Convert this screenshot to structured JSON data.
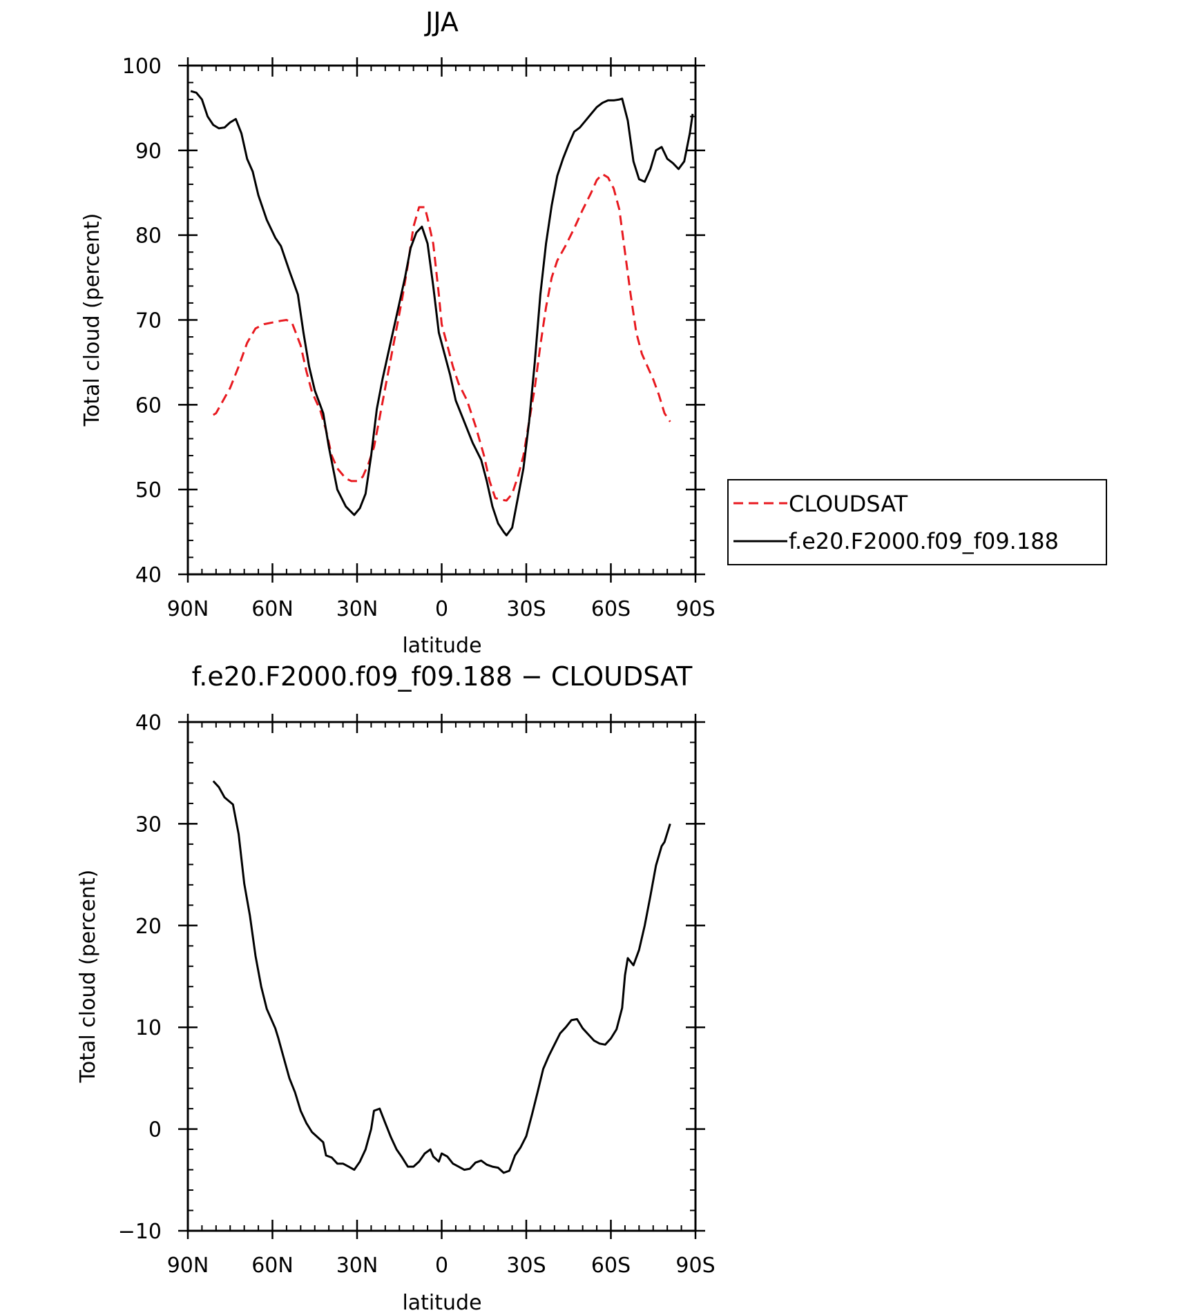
{
  "chart_data": [
    {
      "type": "line",
      "title": "JJA",
      "xlabel": "latitude",
      "ylabel": "Total cloud (percent)",
      "xlim": [
        90,
        -90
      ],
      "ylim": [
        40,
        100
      ],
      "x_ticks": [
        90,
        60,
        30,
        0,
        -30,
        -60,
        -90
      ],
      "x_tick_labels": [
        "90N",
        "60N",
        "30N",
        "0",
        "30S",
        "60S",
        "90S"
      ],
      "y_ticks": [
        40,
        50,
        60,
        70,
        80,
        90,
        100
      ],
      "y_tick_labels": [
        "40",
        "50",
        "60",
        "70",
        "80",
        "90",
        "100"
      ],
      "legend_position": "right",
      "series": [
        {
          "name": "CLOUDSAT",
          "color": "#e8191f",
          "dash": "dashed",
          "points": [
            [
              81,
              58.8
            ],
            [
              80,
              59
            ],
            [
              78,
              60.2
            ],
            [
              75,
              62
            ],
            [
              72,
              64.5
            ],
            [
              69,
              67.3
            ],
            [
              66,
              69
            ],
            [
              63,
              69.5
            ],
            [
              60,
              69.7
            ],
            [
              57,
              69.9
            ],
            [
              55,
              70
            ],
            [
              53,
              69.6
            ],
            [
              50,
              67
            ],
            [
              48,
              64
            ],
            [
              46,
              61.5
            ],
            [
              43,
              59.3
            ],
            [
              41,
              57
            ],
            [
              39,
              54
            ],
            [
              37,
              52.5
            ],
            [
              34,
              51.3
            ],
            [
              32,
              51
            ],
            [
              30,
              51
            ],
            [
              28,
              51.5
            ],
            [
              26,
              53
            ],
            [
              24,
              55
            ],
            [
              22,
              58.5
            ],
            [
              20,
              62
            ],
            [
              18,
              65.5
            ],
            [
              16,
              69
            ],
            [
              14,
              72.5
            ],
            [
              12,
              76.5
            ],
            [
              10,
              81
            ],
            [
              8,
              83.3
            ],
            [
              6,
              83.3
            ],
            [
              5,
              82
            ],
            [
              3,
              79
            ],
            [
              1,
              73
            ],
            [
              0,
              69.5
            ],
            [
              -2,
              67
            ],
            [
              -4,
              64.5
            ],
            [
              -6,
              62.5
            ],
            [
              -9,
              60.5
            ],
            [
              -12,
              57.5
            ],
            [
              -15,
              54
            ],
            [
              -17,
              51
            ],
            [
              -19,
              49
            ],
            [
              -21,
              48.8
            ],
            [
              -23,
              48.7
            ],
            [
              -25,
              49.5
            ],
            [
              -27,
              51.5
            ],
            [
              -29,
              54
            ],
            [
              -31,
              58
            ],
            [
              -33,
              62
            ],
            [
              -35,
              67
            ],
            [
              -37,
              71.5
            ],
            [
              -39,
              75
            ],
            [
              -41,
              77
            ],
            [
              -44,
              78.8
            ],
            [
              -47,
              80.8
            ],
            [
              -50,
              83
            ],
            [
              -53,
              85
            ],
            [
              -55,
              86.5
            ],
            [
              -57,
              87.2
            ],
            [
              -59,
              86.8
            ],
            [
              -61,
              85.5
            ],
            [
              -63,
              83
            ],
            [
              -65,
              78
            ],
            [
              -67,
              73
            ],
            [
              -69,
              68.5
            ],
            [
              -71,
              66
            ],
            [
              -73,
              64.5
            ],
            [
              -75,
              63
            ],
            [
              -77,
              61.2
            ],
            [
              -79,
              59
            ],
            [
              -81,
              58
            ]
          ]
        },
        {
          "name": "f.e20.F2000.f09_f09.188",
          "color": "#000000",
          "dash": "solid",
          "points": [
            [
              89,
              97
            ],
            [
              87,
              96.8
            ],
            [
              85,
              96
            ],
            [
              83,
              94
            ],
            [
              81,
              93
            ],
            [
              79,
              92.6
            ],
            [
              77,
              92.7
            ],
            [
              75,
              93.3
            ],
            [
              73,
              93.7
            ],
            [
              71,
              92
            ],
            [
              69,
              89
            ],
            [
              67,
              87.5
            ],
            [
              65,
              84.7
            ],
            [
              62,
              81.8
            ],
            [
              59,
              79.7
            ],
            [
              57,
              78.7
            ],
            [
              54,
              75.8
            ],
            [
              51,
              73
            ],
            [
              49,
              68.5
            ],
            [
              47,
              64.5
            ],
            [
              45,
              61.7
            ],
            [
              42,
              59
            ],
            [
              40,
              55
            ],
            [
              37,
              50
            ],
            [
              34,
              48
            ],
            [
              31,
              47
            ],
            [
              29,
              47.8
            ],
            [
              27,
              49.5
            ],
            [
              25,
              54
            ],
            [
              23,
              59.5
            ],
            [
              21,
              63
            ],
            [
              19,
              66
            ],
            [
              17,
              69
            ],
            [
              15,
              72
            ],
            [
              13,
              75
            ],
            [
              11,
              78.5
            ],
            [
              9,
              80.3
            ],
            [
              7,
              81
            ],
            [
              5,
              79
            ],
            [
              3,
              74
            ],
            [
              1,
              68.5
            ],
            [
              -1,
              66
            ],
            [
              -3,
              63.5
            ],
            [
              -5,
              60.5
            ],
            [
              -8,
              58
            ],
            [
              -11,
              55.5
            ],
            [
              -14,
              53.5
            ],
            [
              -16,
              51
            ],
            [
              -18,
              48
            ],
            [
              -20,
              46
            ],
            [
              -22,
              45
            ],
            [
              -23,
              44.6
            ],
            [
              -25,
              45.5
            ],
            [
              -27,
              49
            ],
            [
              -29,
              52.5
            ],
            [
              -31,
              58
            ],
            [
              -33,
              65
            ],
            [
              -35,
              73
            ],
            [
              -37,
              79
            ],
            [
              -39,
              83.5
            ],
            [
              -41,
              87
            ],
            [
              -43,
              89
            ],
            [
              -45,
              90.7
            ],
            [
              -47,
              92.2
            ],
            [
              -49,
              92.7
            ],
            [
              -51,
              93.5
            ],
            [
              -53,
              94.3
            ],
            [
              -55,
              95.1
            ],
            [
              -57,
              95.6
            ],
            [
              -59,
              95.9
            ],
            [
              -61,
              95.9
            ],
            [
              -63,
              96
            ],
            [
              -64,
              96.1
            ],
            [
              -66,
              93.5
            ],
            [
              -68,
              88.7
            ],
            [
              -70,
              86.6
            ],
            [
              -72,
              86.3
            ],
            [
              -74,
              87.8
            ],
            [
              -76,
              90
            ],
            [
              -78,
              90.4
            ],
            [
              -80,
              89
            ],
            [
              -82,
              88.5
            ],
            [
              -84,
              87.8
            ],
            [
              -86,
              88.7
            ],
            [
              -88,
              92
            ],
            [
              -89,
              94.3
            ]
          ]
        }
      ]
    },
    {
      "type": "line",
      "title": "f.e20.F2000.f09_f09.188 − CLOUDSAT",
      "xlabel": "latitude",
      "ylabel": "Total cloud (percent)",
      "xlim": [
        90,
        -90
      ],
      "ylim": [
        -10,
        40
      ],
      "x_ticks": [
        90,
        60,
        30,
        0,
        -30,
        -60,
        -90
      ],
      "x_tick_labels": [
        "90N",
        "60N",
        "30N",
        "0",
        "30S",
        "60S",
        "90S"
      ],
      "y_ticks": [
        -10,
        0,
        10,
        20,
        30,
        40
      ],
      "y_tick_labels": [
        "−10",
        "0",
        "10",
        "20",
        "30",
        "40"
      ],
      "series": [
        {
          "color": "#000000",
          "dash": "solid",
          "points": [
            [
              81,
              34.2
            ],
            [
              79,
              33.6
            ],
            [
              77,
              32.6
            ],
            [
              74,
              31.9
            ],
            [
              72,
              29
            ],
            [
              70,
              24.1
            ],
            [
              68,
              21
            ],
            [
              66,
              17
            ],
            [
              64,
              14
            ],
            [
              62,
              11.8
            ],
            [
              59,
              9.9
            ],
            [
              58,
              9
            ],
            [
              56,
              7
            ],
            [
              54,
              5
            ],
            [
              52,
              3.6
            ],
            [
              50,
              1.8
            ],
            [
              48,
              0.6
            ],
            [
              46,
              -0.3
            ],
            [
              44,
              -0.8
            ],
            [
              42,
              -1.3
            ],
            [
              41,
              -2.6
            ],
            [
              39,
              -2.8
            ],
            [
              37,
              -3.4
            ],
            [
              35,
              -3.4
            ],
            [
              33,
              -3.7
            ],
            [
              31,
              -4
            ],
            [
              29,
              -3.2
            ],
            [
              27,
              -2
            ],
            [
              25,
              0
            ],
            [
              24,
              1.8
            ],
            [
              22,
              2
            ],
            [
              20,
              0.6
            ],
            [
              18,
              -0.8
            ],
            [
              16,
              -2
            ],
            [
              14,
              -2.8
            ],
            [
              12,
              -3.7
            ],
            [
              10,
              -3.7
            ],
            [
              8,
              -3.2
            ],
            [
              6,
              -2.4
            ],
            [
              4,
              -2
            ],
            [
              3,
              -2.7
            ],
            [
              1,
              -3.2
            ],
            [
              0,
              -2.4
            ],
            [
              -2,
              -2.7
            ],
            [
              -4,
              -3.4
            ],
            [
              -6,
              -3.7
            ],
            [
              -8,
              -4
            ],
            [
              -10,
              -3.9
            ],
            [
              -12,
              -3.3
            ],
            [
              -14,
              -3.1
            ],
            [
              -16,
              -3.5
            ],
            [
              -18,
              -3.7
            ],
            [
              -20,
              -3.8
            ],
            [
              -22,
              -4.3
            ],
            [
              -24,
              -4.1
            ],
            [
              -26,
              -2.6
            ],
            [
              -28,
              -1.8
            ],
            [
              -30,
              -0.7
            ],
            [
              -32,
              1.4
            ],
            [
              -34,
              3.6
            ],
            [
              -36,
              5.9
            ],
            [
              -38,
              7.2
            ],
            [
              -40,
              8.3
            ],
            [
              -42,
              9.4
            ],
            [
              -44,
              10
            ],
            [
              -46,
              10.7
            ],
            [
              -48,
              10.8
            ],
            [
              -50,
              9.9
            ],
            [
              -52,
              9.3
            ],
            [
              -54,
              8.7
            ],
            [
              -56,
              8.4
            ],
            [
              -58,
              8.3
            ],
            [
              -60,
              8.9
            ],
            [
              -62,
              9.8
            ],
            [
              -64,
              11.9
            ],
            [
              -65,
              15.1
            ],
            [
              -66,
              16.8
            ],
            [
              -68,
              16.1
            ],
            [
              -70,
              17.6
            ],
            [
              -72,
              20
            ],
            [
              -74,
              22.9
            ],
            [
              -76,
              25.9
            ],
            [
              -78,
              27.8
            ],
            [
              -79,
              28.2
            ],
            [
              -81,
              30
            ]
          ]
        }
      ]
    }
  ]
}
